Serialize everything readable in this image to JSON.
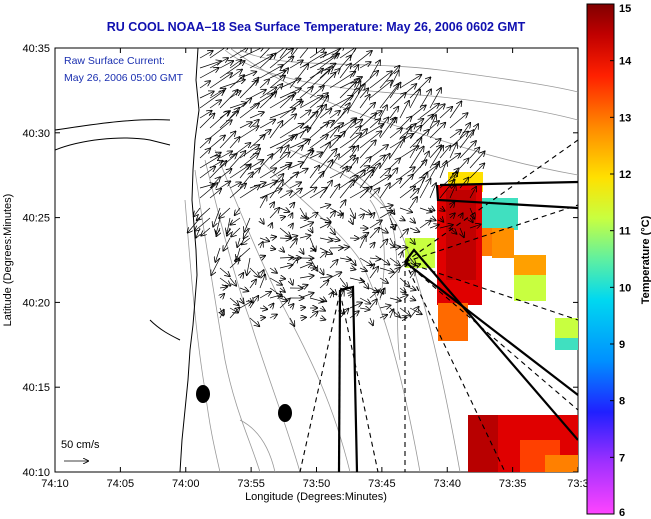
{
  "title": "RU COOL  NOAA–18  Sea Surface Temperature:  May 26, 2006 0602 GMT",
  "annotation": {
    "line1": "Raw Surface Current:",
    "line2": "May 26, 2006 05:00 GMT"
  },
  "scale_label": "50 cm/s",
  "x_axis": {
    "label": "Longitude (Degrees:Minutes)",
    "ticks": [
      "74:10",
      "74:05",
      "74:00",
      "73:55",
      "73:50",
      "73:45",
      "73:40",
      "73:35",
      "73:3"
    ]
  },
  "y_axis": {
    "label": "Latitude (Degrees:Minutes)",
    "ticks": [
      "40:35",
      "40:30",
      "40:25",
      "40:20",
      "40:15",
      "40:10"
    ]
  },
  "colorbar": {
    "label": "Temperature (°C)",
    "ticks": [
      "15",
      "14",
      "13",
      "12",
      "11",
      "10",
      "9",
      "8",
      "7",
      "6"
    ]
  },
  "colors": {
    "title": "#1010b0",
    "annotation": "#1a2fb0",
    "colormap": [
      "#ff44ff",
      "#8a2be2",
      "#2020ff",
      "#00b4ff",
      "#40e0c0",
      "#c8ff40",
      "#ffe000",
      "#ff8000",
      "#e00000",
      "#800000"
    ]
  },
  "icons": [
    "arrow-vector-icon",
    "scale-arrow-icon"
  ]
}
